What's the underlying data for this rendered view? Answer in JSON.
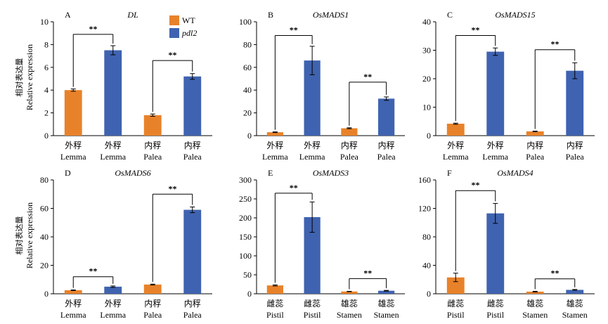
{
  "legend": [
    {
      "label": "WT",
      "italic": false,
      "color": "#E8822A"
    },
    {
      "label": "pdl2",
      "italic": true,
      "color": "#3F63B0"
    }
  ],
  "y_axis_label": {
    "cn": "相对表达量",
    "en": "Relative expression"
  },
  "sig_marker": "**",
  "chart_data": [
    {
      "type": "bar",
      "panel": "A",
      "title": "DL",
      "categories": [
        {
          "cn": "外稃",
          "en": "Lemma"
        },
        {
          "cn": "外稃",
          "en": "Lemma"
        },
        {
          "cn": "内稃",
          "en": "Palea"
        },
        {
          "cn": "内稃",
          "en": "Palea"
        }
      ],
      "values": [
        4.0,
        7.5,
        1.8,
        5.2
      ],
      "errors": [
        0.1,
        0.4,
        0.1,
        0.25
      ],
      "groups": [
        "WT",
        "pdl2",
        "WT",
        "pdl2"
      ],
      "ylim": [
        0,
        10
      ],
      "yticks": [
        0,
        2,
        4,
        6,
        8,
        10
      ],
      "significance": [
        {
          "between": [
            0,
            1
          ],
          "level": 8.9
        },
        {
          "between": [
            2,
            3
          ],
          "level": 6.6
        }
      ]
    },
    {
      "type": "bar",
      "panel": "B",
      "title": "OsMADS1",
      "categories": [
        {
          "cn": "外稃",
          "en": "Lemma"
        },
        {
          "cn": "外稃",
          "en": "Lemma"
        },
        {
          "cn": "内稃",
          "en": "Palea"
        },
        {
          "cn": "内稃",
          "en": "Palea"
        }
      ],
      "values": [
        3,
        66,
        6.5,
        32.5
      ],
      "errors": [
        0.3,
        12.5,
        0.4,
        1.5
      ],
      "groups": [
        "WT",
        "pdl2",
        "WT",
        "pdl2"
      ],
      "ylim": [
        0,
        100
      ],
      "yticks": [
        0,
        20,
        40,
        60,
        80,
        100
      ],
      "significance": [
        {
          "between": [
            0,
            1
          ],
          "level": 88
        },
        {
          "between": [
            2,
            3
          ],
          "level": 47
        }
      ]
    },
    {
      "type": "bar",
      "panel": "C",
      "title": "OsMADS15",
      "categories": [
        {
          "cn": "外稃",
          "en": "Lemma"
        },
        {
          "cn": "外稃",
          "en": "Lemma"
        },
        {
          "cn": "内稃",
          "en": "Palea"
        },
        {
          "cn": "内稃",
          "en": "Palea"
        }
      ],
      "values": [
        4.2,
        29.5,
        1.5,
        22.8
      ],
      "errors": [
        0.2,
        1.3,
        0.1,
        2.8
      ],
      "groups": [
        "WT",
        "pdl2",
        "WT",
        "pdl2"
      ],
      "ylim": [
        0,
        40
      ],
      "yticks": [
        0,
        10,
        20,
        30,
        40
      ],
      "significance": [
        {
          "between": [
            0,
            1
          ],
          "level": 35.2
        },
        {
          "between": [
            2,
            3
          ],
          "level": 30.2
        }
      ]
    },
    {
      "type": "bar",
      "panel": "D",
      "title": "OsMADS6",
      "categories": [
        {
          "cn": "外稃",
          "en": "Lemma"
        },
        {
          "cn": "外稃",
          "en": "Lemma"
        },
        {
          "cn": "内稃",
          "en": "Palea"
        },
        {
          "cn": "内稃",
          "en": "Palea"
        }
      ],
      "values": [
        2.5,
        5,
        6.5,
        59
      ],
      "errors": [
        0.2,
        0.5,
        0.3,
        2
      ],
      "groups": [
        "WT",
        "pdl2",
        "WT",
        "pdl2"
      ],
      "ylim": [
        0,
        80
      ],
      "yticks": [
        0,
        20,
        40,
        60,
        80
      ],
      "significance": [
        {
          "between": [
            0,
            1
          ],
          "level": 12
        },
        {
          "between": [
            2,
            3
          ],
          "level": 70
        }
      ]
    },
    {
      "type": "bar",
      "panel": "E",
      "title": "OsMADS3",
      "categories": [
        {
          "cn": "雌蕊",
          "en": "Pistil"
        },
        {
          "cn": "雌蕊",
          "en": "Pistil"
        },
        {
          "cn": "雄蕊",
          "en": "Stamen"
        },
        {
          "cn": "雄蕊",
          "en": "Stamen"
        }
      ],
      "values": [
        22,
        202,
        6,
        8
      ],
      "errors": [
        1.5,
        40,
        0.5,
        1
      ],
      "groups": [
        "WT",
        "pdl2",
        "WT",
        "pdl2"
      ],
      "ylim": [
        0,
        300
      ],
      "yticks": [
        0,
        50,
        100,
        150,
        200,
        250,
        300
      ],
      "significance": [
        {
          "between": [
            0,
            1
          ],
          "level": 265
        },
        {
          "between": [
            2,
            3
          ],
          "level": 40
        }
      ]
    },
    {
      "type": "bar",
      "panel": "F",
      "title": "OsMADS4",
      "categories": [
        {
          "cn": "雌蕊",
          "en": "Pistil"
        },
        {
          "cn": "雌蕊",
          "en": "Pistil"
        },
        {
          "cn": "雄蕊",
          "en": "Stamen"
        },
        {
          "cn": "雄蕊",
          "en": "Stamen"
        }
      ],
      "values": [
        23,
        113,
        3,
        5.5
      ],
      "errors": [
        6,
        14,
        0.5,
        0.6
      ],
      "groups": [
        "WT",
        "pdl2",
        "WT",
        "pdl2"
      ],
      "ylim": [
        0,
        160
      ],
      "yticks": [
        0,
        40,
        80,
        120,
        160
      ],
      "significance": [
        {
          "between": [
            0,
            1
          ],
          "level": 145
        },
        {
          "between": [
            2,
            3
          ],
          "level": 21
        }
      ]
    }
  ]
}
